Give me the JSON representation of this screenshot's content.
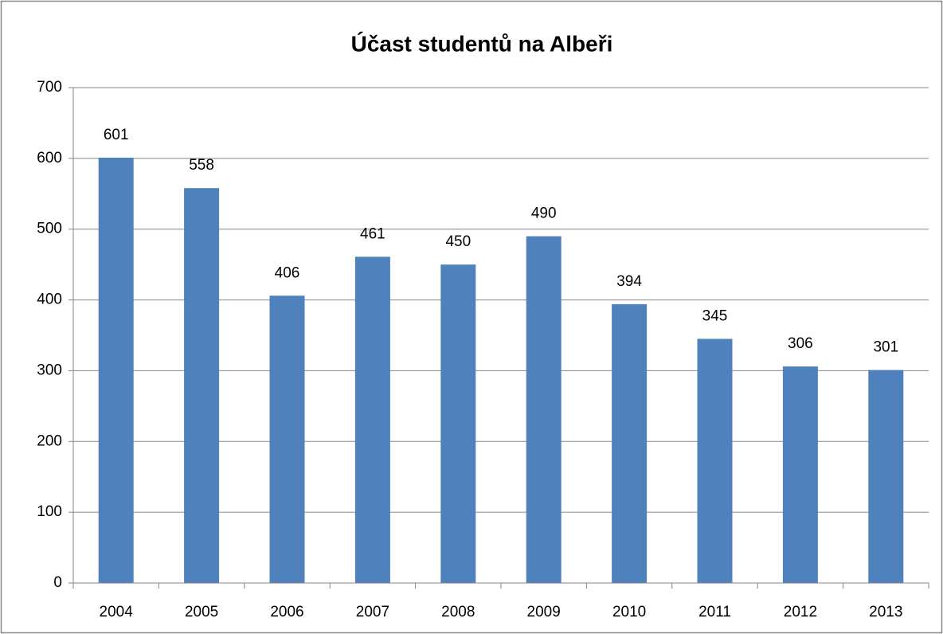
{
  "chart_data": {
    "type": "bar",
    "title": "Účast studentů na Albeři",
    "categories": [
      "2004",
      "2005",
      "2006",
      "2007",
      "2008",
      "2009",
      "2010",
      "2011",
      "2012",
      "2013"
    ],
    "values": [
      601,
      558,
      406,
      461,
      450,
      490,
      394,
      345,
      306,
      301
    ],
    "color": "#4f81bd",
    "ylim": [
      0,
      700
    ],
    "yticks": [
      0,
      100,
      200,
      300,
      400,
      500,
      600,
      700
    ],
    "grid": true
  }
}
